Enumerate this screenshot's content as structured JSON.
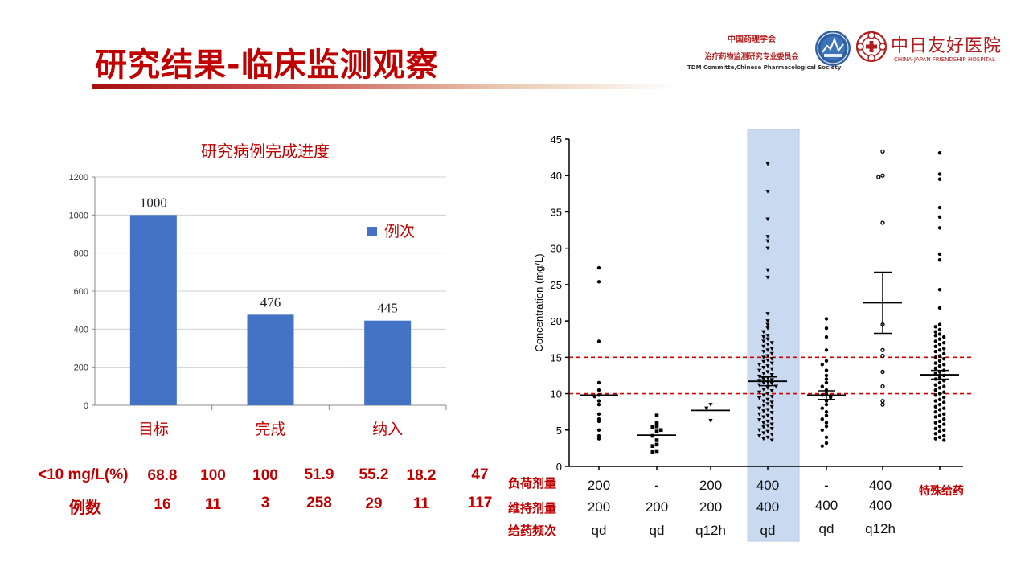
{
  "slide": {
    "title": "研究结果-临床监测观察"
  },
  "header": {
    "org_line1": "中国药理学会",
    "org_line2": "治疗药物监测研究专业委员会",
    "org_line3": "TDM Committe,Chinese Pharmacological Society",
    "hospital_cn": "中日友好医院",
    "hospital_en": "CHINA-JAPAN FRIENDSHIP HOSPITAL",
    "brand_color": "#b11d1d"
  },
  "chart_data": [
    {
      "type": "bar",
      "title": "研究病例完成进度",
      "categories": [
        "目标",
        "完成",
        "纳入"
      ],
      "series": [
        {
          "name": "例次",
          "values": [
            1000,
            476,
            445
          ],
          "color": "#4472c4"
        }
      ],
      "ylim": [
        0,
        1200
      ],
      "yticks": [
        0,
        200,
        400,
        600,
        800,
        1000,
        1200
      ],
      "grid": true,
      "legend": "right"
    },
    {
      "type": "scatter",
      "ylabel": "Concentration (mg/L)",
      "ylim": [
        0,
        45
      ],
      "yticks": [
        0,
        5,
        10,
        15,
        20,
        25,
        30,
        35,
        40,
        45
      ],
      "reference_lines": [
        10,
        15
      ],
      "highlight_group": 4,
      "groups": [
        {
          "mean": 9.8,
          "sd": null,
          "values": [
            27.3,
            25.4,
            17.2,
            11.5,
            10.5,
            9.8,
            9.6,
            9.0,
            8.5,
            7.2,
            6.5,
            6.2,
            5.0,
            4.2,
            3.8
          ]
        },
        {
          "mean": 4.3,
          "sd": null,
          "values": [
            7.0,
            6.0,
            5.5,
            5.4,
            5.0,
            4.8,
            4.2,
            3.6,
            3.0,
            2.8,
            2.1,
            2.0
          ]
        },
        {
          "mean": 7.7,
          "sd": null,
          "values": [
            8.5,
            8.0,
            6.3
          ]
        },
        {
          "mean": 11.7,
          "sd": 0.6,
          "values": [
            41.6,
            37.8,
            34.0,
            31.6,
            31.0,
            30.0,
            27.0,
            26.0,
            21.0,
            20.0,
            19.5,
            19.0,
            18.5,
            18.0,
            17.8,
            17.5,
            17.2,
            17.0,
            16.8,
            16.5,
            16.2,
            16.0,
            15.8,
            15.5,
            15.2,
            15.0,
            14.8,
            14.6,
            14.4,
            14.2,
            14.0,
            13.8,
            13.6,
            13.4,
            13.2,
            13.0,
            12.8,
            12.6,
            12.4,
            12.2,
            12.0,
            11.9,
            11.8,
            11.6,
            11.5,
            11.4,
            11.2,
            11.0,
            10.8,
            10.6,
            10.4,
            10.2,
            10.0,
            9.8,
            9.6,
            9.4,
            9.2,
            9.0,
            8.8,
            8.6,
            8.4,
            8.2,
            8.0,
            7.8,
            7.6,
            7.4,
            7.2,
            7.0,
            6.8,
            6.6,
            6.4,
            6.2,
            6.0,
            5.8,
            5.6,
            5.4,
            5.2,
            5.0,
            4.8,
            4.6,
            4.4,
            4.2,
            4.0,
            3.8,
            3.6
          ]
        },
        {
          "mean": 9.8,
          "sd": 0.6,
          "values": [
            20.3,
            19.0,
            17.8,
            16.0,
            14.5,
            14.0,
            13.2,
            12.5,
            12.0,
            11.5,
            11.0,
            10.5,
            10.0,
            9.8,
            9.5,
            9.0,
            8.5,
            8.0,
            7.5,
            7.0,
            6.5,
            6.0,
            5.5,
            5.0,
            4.0,
            3.2,
            2.8
          ]
        },
        {
          "mean": 22.5,
          "sd": 4.2,
          "values": [
            43.3,
            40.0,
            39.8,
            33.5,
            19.5,
            16.0,
            15.2,
            13.0,
            11.0,
            9.0,
            8.5
          ]
        },
        {
          "mean": 12.6,
          "sd": 0.6,
          "values": [
            43.1,
            40.2,
            39.5,
            35.6,
            34.3,
            32.8,
            29.2,
            28.4,
            24.3,
            21.8,
            19.5,
            19.2,
            18.8,
            18.5,
            18.2,
            18.0,
            17.8,
            17.5,
            17.2,
            17.0,
            16.8,
            16.5,
            16.2,
            16.0,
            15.8,
            15.5,
            15.2,
            15.0,
            14.8,
            14.5,
            14.2,
            14.0,
            13.8,
            13.5,
            13.2,
            13.0,
            12.8,
            12.5,
            12.2,
            12.0,
            11.8,
            11.5,
            11.2,
            11.0,
            10.8,
            10.5,
            10.2,
            10.0,
            9.8,
            9.5,
            9.2,
            9.0,
            8.8,
            8.5,
            8.2,
            8.0,
            7.8,
            7.5,
            7.2,
            7.0,
            6.8,
            6.5,
            6.2,
            6.0,
            5.8,
            5.5,
            5.2,
            5.0,
            4.8,
            4.5,
            4.2,
            4.0,
            3.8,
            3.6
          ]
        }
      ]
    }
  ],
  "stats": {
    "pct_label": "<10 mg/L(%)",
    "count_label": "例数",
    "pct_values": [
      "68.8",
      "100",
      "100",
      "51.9",
      "55.2",
      "18.2",
      "47"
    ],
    "count_values": [
      "16",
      "11",
      "3",
      "258",
      "29",
      "11",
      "117"
    ]
  },
  "dosing": {
    "loading_label": "负荷剂量",
    "maintenance_label": "维持剂量",
    "frequency_label": "给药频次",
    "loading": [
      "200",
      "-",
      "200",
      "400",
      "-",
      "400"
    ],
    "maintenance": [
      "200",
      "200",
      "200",
      "400",
      "400",
      "400"
    ],
    "frequency": [
      "qd",
      "qd",
      "q12h",
      "qd",
      "qd",
      "q12h"
    ],
    "special_label": "特殊给药"
  }
}
